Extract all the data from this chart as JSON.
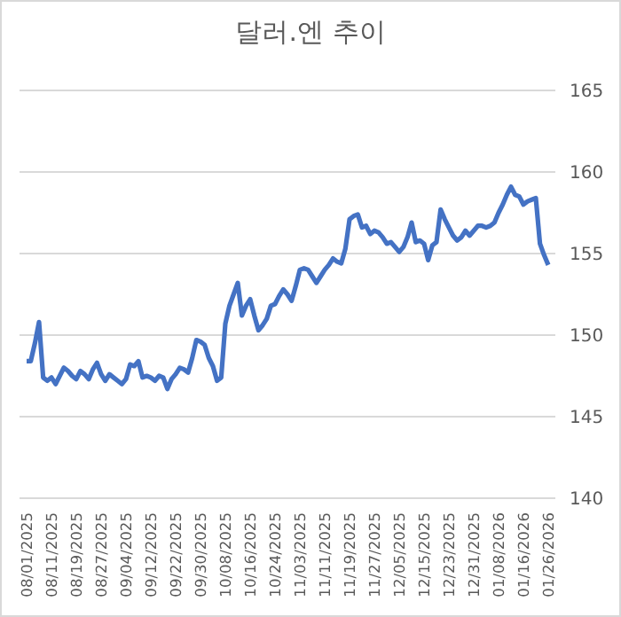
{
  "chart_data": {
    "type": "line",
    "title": "달러.엔 추이",
    "categories": [
      "08/01/2025",
      null,
      null,
      null,
      null,
      null,
      "08/11/2025",
      null,
      null,
      null,
      null,
      null,
      "08/19/2025",
      null,
      null,
      null,
      null,
      null,
      "08/27/2025",
      null,
      null,
      null,
      null,
      null,
      "09/04/2025",
      null,
      null,
      null,
      null,
      null,
      "09/12/2025",
      null,
      null,
      null,
      null,
      null,
      "09/22/2025",
      null,
      null,
      null,
      null,
      null,
      "09/30/2025",
      null,
      null,
      null,
      null,
      null,
      "10/08/2025",
      null,
      null,
      null,
      null,
      null,
      "10/16/2025",
      null,
      null,
      null,
      null,
      null,
      "10/24/2025",
      null,
      null,
      null,
      null,
      null,
      "11/03/2025",
      null,
      null,
      null,
      null,
      null,
      "11/11/2025",
      null,
      null,
      null,
      null,
      null,
      "11/19/2025",
      null,
      null,
      null,
      null,
      null,
      "11/27/2025",
      null,
      null,
      null,
      null,
      null,
      "12/05/2025",
      null,
      null,
      null,
      null,
      null,
      "12/15/2025",
      null,
      null,
      null,
      null,
      null,
      "12/23/2025",
      null,
      null,
      null,
      null,
      null,
      "12/31/2025",
      null,
      null,
      null,
      null,
      null,
      "01/08/2026",
      null,
      null,
      null,
      null,
      null,
      "01/16/2026",
      null,
      null,
      null,
      null,
      null,
      "01/26/2026"
    ],
    "series": [
      {
        "color": "#4472c4",
        "values": [
          148.4,
          148.4,
          149.5,
          150.8,
          147.4,
          147.2,
          147.4,
          147.0,
          147.5,
          148.0,
          147.8,
          147.5,
          147.3,
          147.8,
          147.6,
          147.3,
          147.9,
          148.3,
          147.6,
          147.2,
          147.6,
          147.4,
          147.2,
          147.0,
          147.3,
          148.2,
          148.1,
          148.4,
          147.4,
          147.5,
          147.4,
          147.2,
          147.5,
          147.4,
          146.7,
          147.3,
          147.6,
          148.0,
          147.9,
          147.7,
          148.6,
          149.7,
          149.6,
          149.4,
          148.6,
          148.1,
          147.2,
          147.4,
          150.7,
          151.8,
          152.5,
          153.2,
          151.2,
          151.8,
          152.2,
          151.2,
          150.3,
          150.6,
          151.0,
          151.8,
          151.9,
          152.4,
          152.8,
          152.5,
          152.1,
          153.0,
          154.0,
          154.1,
          154.0,
          153.6,
          153.2,
          153.6,
          154.0,
          154.3,
          154.7,
          154.5,
          154.4,
          155.3,
          157.1,
          157.3,
          157.4,
          156.6,
          156.7,
          156.2,
          156.4,
          156.3,
          156.0,
          155.6,
          155.7,
          155.4,
          155.1,
          155.4,
          156.0,
          156.9,
          155.7,
          155.8,
          155.6,
          154.6,
          155.5,
          155.7,
          157.7,
          157.1,
          156.6,
          156.1,
          155.8,
          156.0,
          156.4,
          156.1,
          156.4,
          156.7,
          156.7,
          156.6,
          156.7,
          156.9,
          157.5,
          158.0,
          158.6,
          159.1,
          158.6,
          158.5,
          158.0,
          158.2,
          158.3,
          158.4,
          155.6,
          154.9,
          154.3
        ]
      }
    ],
    "ylim": [
      140,
      165
    ],
    "yticks": [
      140,
      145,
      150,
      155,
      160,
      165
    ],
    "grid": "y",
    "legend": false,
    "marker": "none",
    "line_style": "solid"
  }
}
